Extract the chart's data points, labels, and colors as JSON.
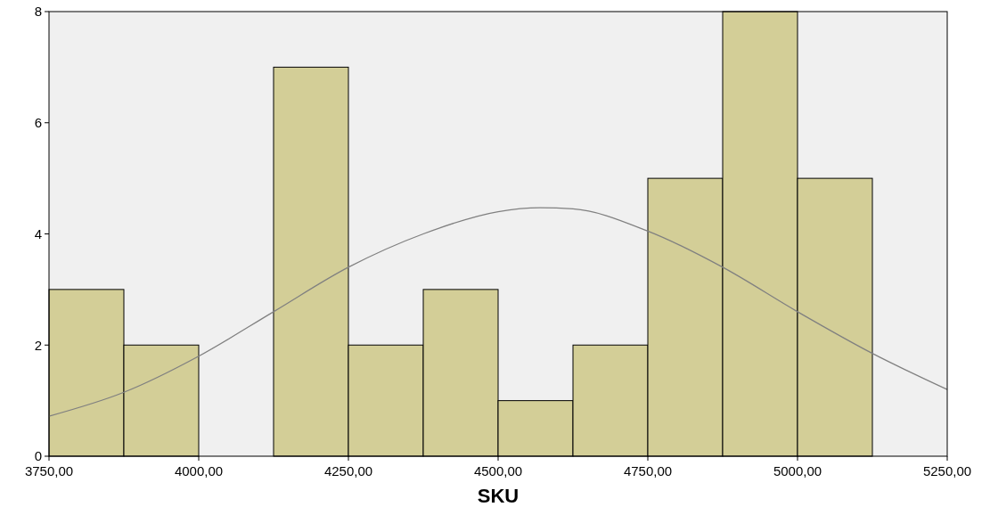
{
  "chart_data": {
    "type": "histogram",
    "xlabel": "SKU",
    "xlim": [
      3750,
      5250
    ],
    "ylim": [
      0,
      8
    ],
    "xticks": [
      {
        "value": 3750,
        "label": "3750,00"
      },
      {
        "value": 4000,
        "label": "4000,00"
      },
      {
        "value": 4250,
        "label": "4250,00"
      },
      {
        "value": 4500,
        "label": "4500,00"
      },
      {
        "value": 4750,
        "label": "4750,00"
      },
      {
        "value": 5000,
        "label": "5000,00"
      },
      {
        "value": 5250,
        "label": "5250,00"
      }
    ],
    "yticks": [
      0,
      2,
      4,
      6,
      8
    ],
    "grid": false,
    "series": [
      {
        "color": "#d3ce97",
        "bins": [
          3750,
          3875,
          4000,
          4125,
          4250,
          4375,
          4500,
          4625,
          4750,
          4875,
          5000,
          5125
        ],
        "values": [
          3,
          2,
          0,
          7,
          2,
          3,
          1,
          2,
          5,
          8,
          5
        ]
      },
      {
        "type": "line",
        "color": "#808080",
        "x": [
          3750,
          3875,
          4000,
          4125,
          4250,
          4375,
          4500,
          4570,
          4625,
          4750,
          4875,
          5000,
          5125,
          5250
        ],
        "values": [
          0.72,
          1.15,
          1.8,
          2.6,
          3.4,
          4.0,
          4.4,
          4.47,
          4.45,
          4.05,
          3.4,
          2.6,
          1.85,
          1.2
        ]
      }
    ]
  }
}
